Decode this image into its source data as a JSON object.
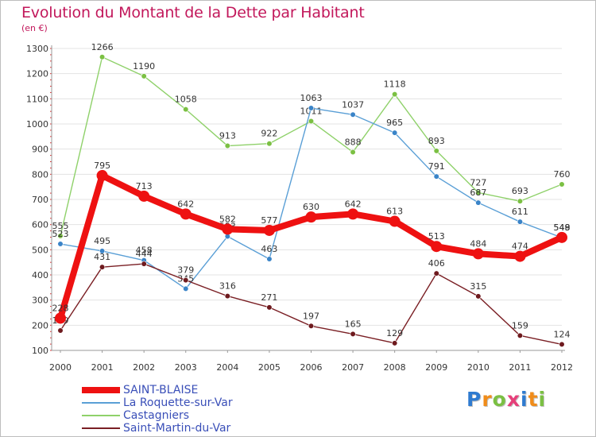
{
  "title": "Evolution du Montant de la Dette par Habitant",
  "unit": "(en €)",
  "brand": "Proxiti",
  "brand_colors": [
    "#2f7bd0",
    "#f08c1a",
    "#7bc043",
    "#e63f7a",
    "#2f7bd0",
    "#f08c1a",
    "#7bc043"
  ],
  "chart_data": {
    "type": "line",
    "title": "Evolution du Montant de la Dette par Habitant",
    "ylabel": "(en €)",
    "xlabel": "",
    "x": [
      "2000",
      "2001",
      "2002",
      "2003",
      "2004",
      "2005",
      "2006",
      "2007",
      "2008",
      "2009",
      "2010",
      "2011",
      "2012"
    ],
    "ylim": [
      100,
      1300
    ],
    "yticks": [
      100,
      200,
      300,
      400,
      500,
      600,
      700,
      800,
      900,
      1000,
      1100,
      1200,
      1300
    ],
    "grid": true,
    "legend": "bottom-left",
    "series": [
      {
        "name": "Castagniers",
        "color": "#8fd16a",
        "dot": "#7bc043",
        "width": 1.4,
        "r": 3.3,
        "values": [
          555,
          1266,
          1190,
          1058,
          913,
          922,
          1011,
          888,
          1118,
          893,
          727,
          693,
          760
        ],
        "labels": [
          "555",
          "1266",
          "1190",
          "1058",
          "913",
          "922",
          "1011",
          "888",
          "1118",
          "893",
          "727",
          "693",
          "760"
        ]
      },
      {
        "name": "La Roquette-sur-Var",
        "color": "#5a9fd6",
        "dot": "#3a84c8",
        "width": 1.4,
        "r": 3.3,
        "values": [
          523,
          495,
          458,
          345,
          553,
          463,
          1063,
          1037,
          965,
          791,
          687,
          611,
          548
        ],
        "labels": [
          "523",
          "495",
          "458",
          "345",
          "553",
          "463",
          "1063",
          "1037",
          "965",
          "791",
          "687",
          "611",
          "548"
        ]
      },
      {
        "name": "Saint-Martin-du-Var",
        "color": "#7a1f24",
        "dot": "#6e1a1e",
        "width": 1.4,
        "r": 3.3,
        "values": [
          179,
          431,
          444,
          379,
          316,
          271,
          197,
          165,
          129,
          406,
          315,
          159,
          124
        ],
        "labels": [
          "179",
          "431",
          "444",
          "379",
          "316",
          "271",
          "197",
          "165",
          "129",
          "406",
          "315",
          "159",
          "124"
        ]
      },
      {
        "name": "SAINT-BLAISE",
        "color": "#ee1111",
        "dot": "#ee1111",
        "width": 8,
        "r": 7,
        "values": [
          228,
          795,
          713,
          642,
          582,
          577,
          630,
          642,
          613,
          513,
          484,
          474,
          549
        ],
        "labels": [
          "228",
          "795",
          "713",
          "642",
          "582",
          "577",
          "630",
          "642",
          "613",
          "513",
          "484",
          "474",
          "549"
        ]
      }
    ],
    "legend_order": [
      "SAINT-BLAISE",
      "La Roquette-sur-Var",
      "Castagniers",
      "Saint-Martin-du-Var"
    ]
  }
}
